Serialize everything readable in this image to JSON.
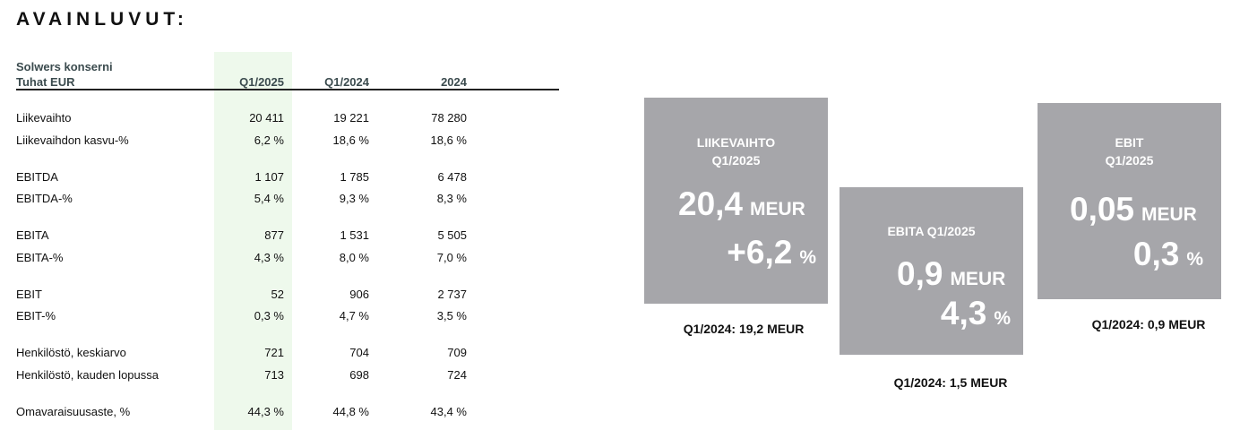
{
  "header": {
    "title": "AVAINLUVUT:"
  },
  "table": {
    "header_left": [
      "Solwers konserni",
      "Tuhat EUR"
    ],
    "columns": [
      "Q1/2025",
      "Q1/2024",
      "2024"
    ],
    "groups": [
      [
        [
          "Liikevaihto",
          "20 411",
          "19 221",
          "78 280"
        ],
        [
          "Liikevaihdon kasvu-%",
          "6,2 %",
          "18,6 %",
          "18,6 %"
        ]
      ],
      [
        [
          "EBITDA",
          "1 107",
          "1 785",
          "6 478"
        ],
        [
          "EBITDA-%",
          "5,4 %",
          "9,3 %",
          "8,3 %"
        ]
      ],
      [
        [
          "EBITA",
          "877",
          "1 531",
          "5 505"
        ],
        [
          "EBITA-%",
          "4,3 %",
          "8,0 %",
          "7,0 %"
        ]
      ],
      [
        [
          "EBIT",
          "52",
          "906",
          "2 737"
        ],
        [
          "EBIT-%",
          "0,3 %",
          "4,7 %",
          "3,5 %"
        ]
      ],
      [
        [
          "Henkilöstö, keskiarvo",
          "721",
          "704",
          "709"
        ],
        [
          "Henkilöstö, kauden lopussa",
          "713",
          "698",
          "724"
        ]
      ],
      [
        [
          "Omavaraisuusaste, %",
          "44,3 %",
          "44,8 %",
          "43,4 %"
        ]
      ]
    ]
  },
  "cards": [
    {
      "title": [
        "LIIKEVAIHTO",
        "Q1/2025"
      ],
      "main": "20,4",
      "main_unit": "MEUR",
      "sub": "+6,2",
      "sub_unit": "%",
      "footnote": "Q1/2024: 19,2 MEUR"
    },
    {
      "title": [
        "EBITA  Q1/2025"
      ],
      "main": "0,9",
      "main_unit": "MEUR",
      "sub": "4,3",
      "sub_unit": "%",
      "footnote": "Q1/2024: 1,5 MEUR"
    },
    {
      "title": [
        "EBIT",
        "Q1/2025"
      ],
      "main": "0,05",
      "main_unit": "MEUR",
      "sub": "0,3",
      "sub_unit": "%",
      "footnote": "Q1/2024: 0,9 MEUR"
    }
  ]
}
